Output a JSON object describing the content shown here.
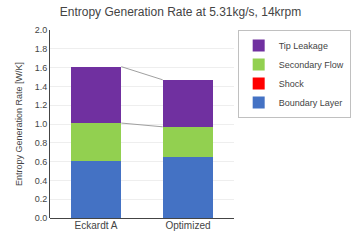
{
  "chart_data": {
    "type": "bar",
    "stacked": true,
    "title": "Entropy Generation Rate at 5.31kg/s, 14krpm",
    "ylabel": "Entropy Generation Rate [W/K]",
    "categories": [
      "Eckardt A",
      "Optimized"
    ],
    "series": [
      {
        "name": "Boundary Layer",
        "color": "#4472C4",
        "values": [
          0.61,
          0.65
        ]
      },
      {
        "name": "Shock",
        "color": "#FF0000",
        "values": [
          0.0,
          0.0
        ]
      },
      {
        "name": "Secondary Flow",
        "color": "#92D050",
        "values": [
          0.4,
          0.32
        ]
      },
      {
        "name": "Tip Leakage",
        "color": "#7030A0",
        "values": [
          0.6,
          0.5
        ]
      }
    ],
    "ylim": [
      0,
      2
    ],
    "yticks": [
      {
        "value": 0,
        "label": "0.0"
      },
      0.2,
      0.4,
      0.6,
      0.8,
      {
        "value": 1.0,
        "label": "1.0"
      },
      1.2,
      1.4,
      1.6,
      1.8,
      {
        "value": 2.0,
        "label": "2.0"
      }
    ],
    "grid": true,
    "legend": "upper right"
  }
}
